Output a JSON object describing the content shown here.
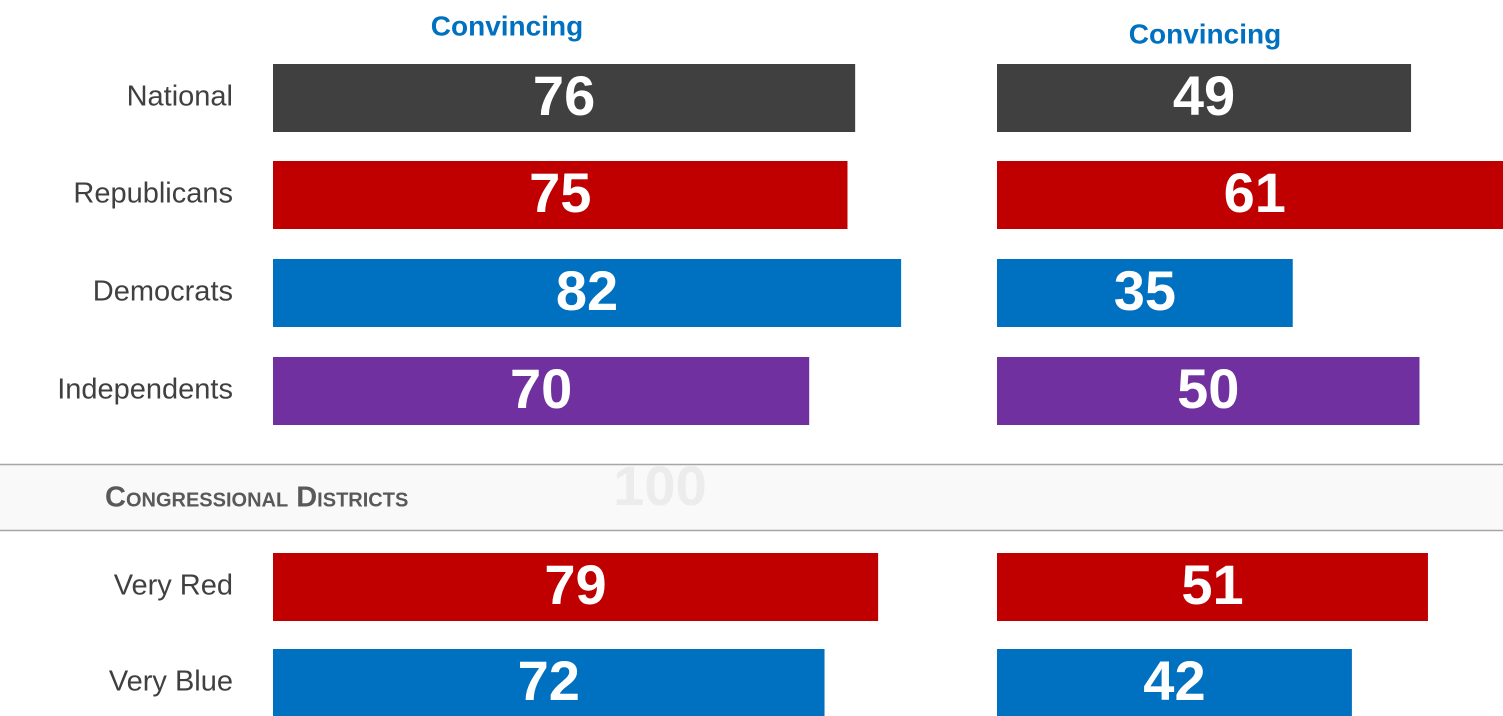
{
  "chart_data": [
    {
      "type": "bar",
      "title": "Convincing",
      "categories": [
        "National",
        "Republicans",
        "Democrats",
        "Independents",
        "Very Red",
        "Very Blue"
      ],
      "values": [
        76,
        75,
        82,
        70,
        79,
        72
      ],
      "colors": [
        "#404040",
        "#c00000",
        "#0070c0",
        "#7030a0",
        "#c00000",
        "#0070c0"
      ],
      "xlim": [
        0,
        100
      ]
    },
    {
      "type": "bar",
      "title": "Convincing",
      "values": [
        49,
        61,
        35,
        50,
        51,
        42
      ],
      "colors": [
        "#404040",
        "#c00000",
        "#0070c0",
        "#7030a0",
        "#c00000",
        "#0070c0"
      ],
      "xlim": [
        0,
        100
      ]
    }
  ],
  "section": {
    "title": "Congressional Districts",
    "annotation": "100"
  }
}
